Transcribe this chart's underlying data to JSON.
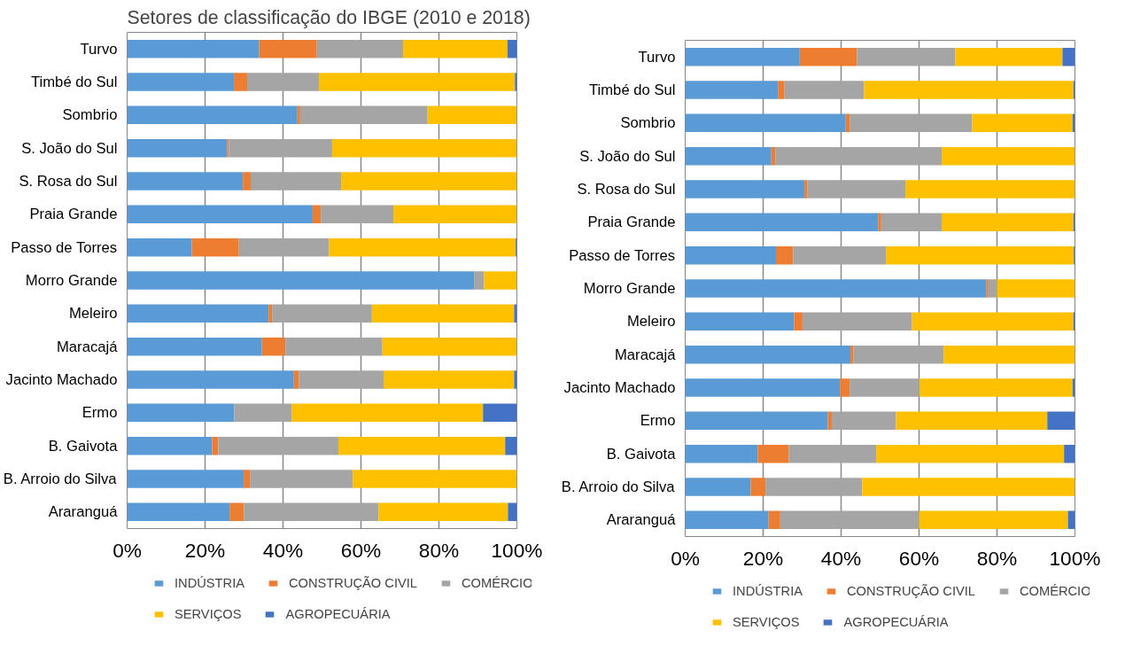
{
  "chart_data": [
    {
      "type": "bar",
      "orientation": "horizontal",
      "stacked": true,
      "title": "Setores de classificação do IBGE (2010 e 2018)",
      "categories": [
        "Turvo",
        "Timbé do Sul",
        "Sombrio",
        "S. João do Sul",
        "S. Rosa do Sul",
        "Praia Grande",
        "Passo de Torres",
        "Morro Grande",
        "Meleiro",
        "Maracajá",
        "Jacinto Machado",
        "Ermo",
        "B. Gaivota",
        "B. Arroio do Silva",
        "Araranguá"
      ],
      "xlim": [
        0,
        100
      ],
      "xticks": [
        {
          "value": 0,
          "label": "0%"
        },
        {
          "value": 20,
          "label": "20%"
        },
        {
          "value": 40,
          "label": "40%"
        },
        {
          "value": 60,
          "label": "60%"
        },
        {
          "value": 80,
          "label": "80%"
        },
        {
          "value": 100,
          "label": "100%"
        }
      ],
      "grid": "x",
      "legend": "bottom",
      "series": [
        {
          "name": "INDÚSTRIA",
          "color": "#5b9bd5",
          "values": [
            33.9,
            27.4,
            43.7,
            25.7,
            29.7,
            47.6,
            16.6,
            89.0,
            36.3,
            34.6,
            42.8,
            27.5,
            21.8,
            29.9,
            26.3
          ]
        },
        {
          "name": "CONSTRUÇÃO CIVIL",
          "color": "#ed7d31",
          "values": [
            14.8,
            3.4,
            0.7,
            0.4,
            2.0,
            2.1,
            12.1,
            0,
            0.9,
            6.0,
            1.3,
            0,
            1.6,
            1.6,
            3.7
          ]
        },
        {
          "name": "COMÉRCIO",
          "color": "#a5a5a5",
          "values": [
            22.1,
            18.4,
            32.7,
            26.5,
            23.2,
            18.6,
            23.1,
            2.6,
            25.6,
            24.9,
            21.7,
            14.7,
            30.8,
            26.4,
            34.5
          ]
        },
        {
          "name": "SERVIÇOS",
          "color": "#ffc000",
          "values": [
            26.8,
            50.3,
            22.9,
            47.4,
            45.1,
            31.7,
            47.9,
            8.4,
            36.5,
            34.5,
            33.5,
            49.1,
            42.8,
            42.1,
            33.2
          ]
        },
        {
          "name": "AGROPECUÁRIA",
          "color": "#4472c4",
          "values": [
            2.4,
            0.5,
            0,
            0,
            0,
            0,
            0.3,
            0,
            0.7,
            0,
            0.7,
            8.7,
            3.0,
            0,
            2.3
          ]
        }
      ]
    },
    {
      "type": "bar",
      "orientation": "horizontal",
      "stacked": true,
      "categories": [
        "Turvo",
        "Timbé do Sul",
        "Sombrio",
        "S. João do Sul",
        "S. Rosa do Sul",
        "Praia Grande",
        "Passo de Torres",
        "Morro Grande",
        "Meleiro",
        "Maracajá",
        "Jacinto Machado",
        "Ermo",
        "B. Gaivota",
        "B. Arroio do Silva",
        "Araranguá"
      ],
      "xlim": [
        0,
        100
      ],
      "xticks": [
        {
          "value": 0,
          "label": "0%"
        },
        {
          "value": 20,
          "label": "20%"
        },
        {
          "value": 40,
          "label": "40%"
        },
        {
          "value": 60,
          "label": "60%"
        },
        {
          "value": 80,
          "label": "80%"
        },
        {
          "value": 100,
          "label": "100%"
        }
      ],
      "grid": "x",
      "legend": "bottom",
      "series": [
        {
          "name": "INDÚSTRIA",
          "color": "#5b9bd5",
          "values": [
            29.4,
            23.8,
            41.2,
            22.1,
            30.6,
            49.5,
            23.3,
            77.3,
            27.9,
            42.4,
            39.7,
            36.6,
            18.6,
            16.8,
            21.4
          ]
        },
        {
          "name": "CONSTRUÇÃO CIVIL",
          "color": "#ed7d31",
          "values": [
            14.7,
            1.7,
            1.0,
            1.0,
            0.8,
            0.8,
            4.4,
            0.5,
            2.2,
            0.8,
            2.5,
            1.0,
            8.0,
            3.8,
            3.0
          ]
        },
        {
          "name": "COMÉRCIO",
          "color": "#a5a5a5",
          "values": [
            25.2,
            20.4,
            31.4,
            42.7,
            25.1,
            15.5,
            23.8,
            2.2,
            28.1,
            23.1,
            17.9,
            16.5,
            22.4,
            24.8,
            35.6
          ]
        },
        {
          "name": "SERVIÇOS",
          "color": "#ffc000",
          "values": [
            27.5,
            53.7,
            25.8,
            34.2,
            43.5,
            33.8,
            48.2,
            20.0,
            41.4,
            33.7,
            39.3,
            38.8,
            48.2,
            54.6,
            38.2
          ]
        },
        {
          "name": "AGROPECUÁRIA",
          "color": "#4472c4",
          "values": [
            3.2,
            0.4,
            0.6,
            0,
            0,
            0.4,
            0.3,
            0,
            0.4,
            0,
            0.6,
            7.1,
            2.8,
            0,
            1.8
          ]
        }
      ]
    }
  ]
}
